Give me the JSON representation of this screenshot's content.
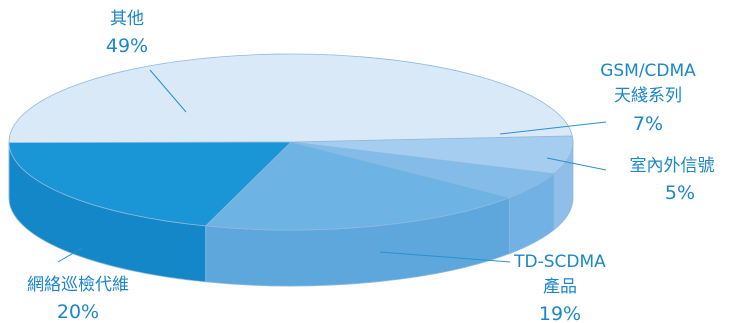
{
  "chart_data": {
    "type": "pie",
    "style": "3d",
    "series": [
      {
        "values": [
          {
            "label": "其他",
            "value": 49,
            "display": "49%",
            "color": "#d9e9f7",
            "side_color": "#c6def3"
          },
          {
            "label": "GSM/CDMA 天綫系列",
            "label_lines": [
              "GSM/CDMA",
              "天綫系列"
            ],
            "value": 7,
            "display": "7%",
            "color": "#a4cdef",
            "side_color": "#8fbfe8"
          },
          {
            "label": "室內外信號",
            "value": 5,
            "display": "5%",
            "color": "#83bce9",
            "side_color": "#72b1e3"
          },
          {
            "label": "TD-SCDMA 產品",
            "label_lines": [
              "TD-SCDMA",
              "產品"
            ],
            "value": 19,
            "display": "19%",
            "color": "#6db3e4",
            "side_color": "#5ea7dd"
          },
          {
            "label": "網絡巡檢代維",
            "value": 20,
            "display": "20%",
            "color": "#1a96d6",
            "side_color": "#1487c9"
          }
        ]
      }
    ],
    "colors": {
      "text": "#1b87c8",
      "leader": "#2a8fce",
      "outline": "#8fb9dd"
    }
  }
}
